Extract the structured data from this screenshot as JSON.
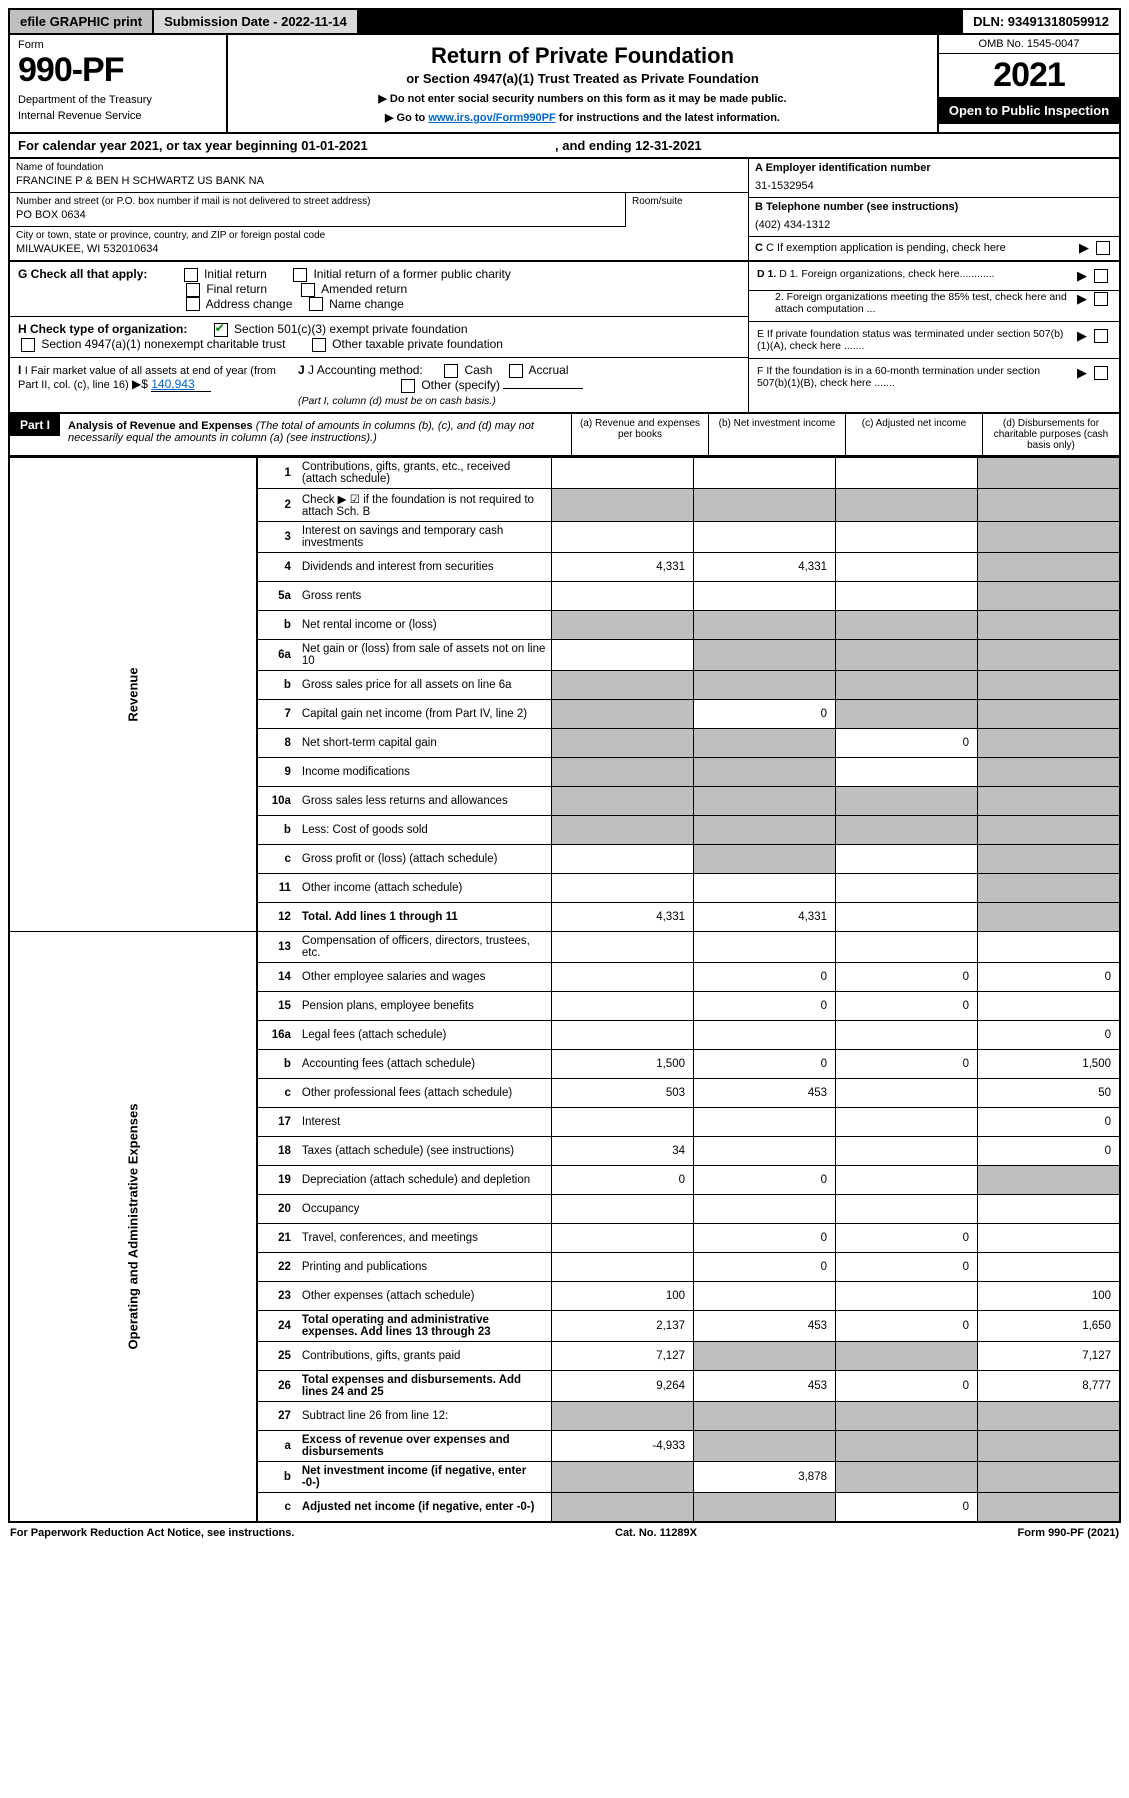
{
  "topbar": {
    "efile": "efile GRAPHIC print",
    "submission": "Submission Date - 2022-11-14",
    "dln": "DLN: 93491318059912"
  },
  "header": {
    "form_label": "Form",
    "form_number": "990-PF",
    "dept1": "Department of the Treasury",
    "dept2": "Internal Revenue Service",
    "title": "Return of Private Foundation",
    "subtitle": "or Section 4947(a)(1) Trust Treated as Private Foundation",
    "instr1": "▶ Do not enter social security numbers on this form as it may be made public.",
    "instr2_pre": "▶ Go to ",
    "instr2_link": "www.irs.gov/Form990PF",
    "instr2_post": " for instructions and the latest information.",
    "omb": "OMB No. 1545-0047",
    "year": "2021",
    "open_public": "Open to Public Inspection"
  },
  "calyear": {
    "text_pre": "For calendar year 2021, or tax year beginning ",
    "begin": "01-01-2021",
    "text_mid": " , and ending ",
    "end": "12-31-2021"
  },
  "info": {
    "name_label": "Name of foundation",
    "name": "FRANCINE P & BEN H SCHWARTZ US BANK NA",
    "addr_label": "Number and street (or P.O. box number if mail is not delivered to street address)",
    "addr": "PO BOX 0634",
    "room_label": "Room/suite",
    "city_label": "City or town, state or province, country, and ZIP or foreign postal code",
    "city": "MILWAUKEE, WI  532010634",
    "ein_label": "A Employer identification number",
    "ein": "31-1532954",
    "phone_label": "B Telephone number (see instructions)",
    "phone": "(402) 434-1312",
    "c_label": "C If exemption application is pending, check here"
  },
  "checks": {
    "g_label": "G Check all that apply:",
    "g_opts": [
      "Initial return",
      "Initial return of a former public charity",
      "Final return",
      "Amended return",
      "Address change",
      "Name change"
    ],
    "h_label": "H Check type of organization:",
    "h_opt1": "Section 501(c)(3) exempt private foundation",
    "h_opt2": "Section 4947(a)(1) nonexempt charitable trust",
    "h_opt3": "Other taxable private foundation",
    "i_label": "I Fair market value of all assets at end of year (from Part II, col. (c), line 16)",
    "i_val": "140,943",
    "j_label": "J Accounting method:",
    "j_cash": "Cash",
    "j_accrual": "Accrual",
    "j_other": "Other (specify)",
    "j_note": "(Part I, column (d) must be on cash basis.)",
    "d1": "D 1. Foreign organizations, check here............",
    "d2": "2. Foreign organizations meeting the 85% test, check here and attach computation ...",
    "e": "E  If private foundation status was terminated under section 507(b)(1)(A), check here .......",
    "f": "F  If the foundation is in a 60-month termination under section 507(b)(1)(B), check here ......."
  },
  "part1": {
    "label": "Part I",
    "title": "Analysis of Revenue and Expenses",
    "note": " (The total of amounts in columns (b), (c), and (d) may not necessarily equal the amounts in column (a) (see instructions).)",
    "cols": {
      "a": "(a) Revenue and expenses per books",
      "b": "(b) Net investment income",
      "c": "(c) Adjusted net income",
      "d": "(d) Disbursements for charitable purposes (cash basis only)"
    }
  },
  "side_labels": {
    "revenue": "Revenue",
    "expenses": "Operating and Administrative Expenses"
  },
  "lines": [
    {
      "n": "1",
      "d": "Contributions, gifts, grants, etc., received (attach schedule)",
      "a": "",
      "b": "",
      "c": "",
      "cd": "grey",
      "dd": "grey"
    },
    {
      "n": "2",
      "d": "Check ▶ ☑ if the foundation is not required to attach Sch. B",
      "a": "",
      "b": "",
      "c": "",
      "cd": "grey",
      "dd": "grey",
      "b_grey": true,
      "a_grey": true,
      "c_grey": true
    },
    {
      "n": "3",
      "d": "Interest on savings and temporary cash investments",
      "a": "",
      "b": "",
      "c": "",
      "dd": "grey"
    },
    {
      "n": "4",
      "d": "Dividends and interest from securities",
      "a": "4,331",
      "b": "4,331",
      "c": "",
      "dd": "grey"
    },
    {
      "n": "5a",
      "d": "Gross rents",
      "a": "",
      "b": "",
      "c": "",
      "dd": "grey"
    },
    {
      "n": "b",
      "d": "Net rental income or (loss)",
      "a": "",
      "b": "",
      "c": "",
      "a_grey": true,
      "b_grey": true,
      "c_grey": true,
      "dd": "grey"
    },
    {
      "n": "6a",
      "d": "Net gain or (loss) from sale of assets not on line 10",
      "a": "",
      "b": "",
      "c": "",
      "b_grey": true,
      "c_grey": true,
      "dd": "grey"
    },
    {
      "n": "b",
      "d": "Gross sales price for all assets on line 6a",
      "a": "",
      "b": "",
      "c": "",
      "a_grey": true,
      "b_grey": true,
      "c_grey": true,
      "dd": "grey"
    },
    {
      "n": "7",
      "d": "Capital gain net income (from Part IV, line 2)",
      "a": "",
      "b": "0",
      "c": "",
      "a_grey": true,
      "c_grey": true,
      "dd": "grey"
    },
    {
      "n": "8",
      "d": "Net short-term capital gain",
      "a": "",
      "b": "",
      "c": "0",
      "a_grey": true,
      "b_grey": true,
      "dd": "grey"
    },
    {
      "n": "9",
      "d": "Income modifications",
      "a": "",
      "b": "",
      "c": "",
      "a_grey": true,
      "b_grey": true,
      "dd": "grey"
    },
    {
      "n": "10a",
      "d": "Gross sales less returns and allowances",
      "a": "",
      "b": "",
      "c": "",
      "a_grey": true,
      "b_grey": true,
      "c_grey": true,
      "dd": "grey"
    },
    {
      "n": "b",
      "d": "Less: Cost of goods sold",
      "a": "",
      "b": "",
      "c": "",
      "a_grey": true,
      "b_grey": true,
      "c_grey": true,
      "dd": "grey"
    },
    {
      "n": "c",
      "d": "Gross profit or (loss) (attach schedule)",
      "a": "",
      "b": "",
      "c": "",
      "b_grey": true,
      "dd": "grey"
    },
    {
      "n": "11",
      "d": "Other income (attach schedule)",
      "a": "",
      "b": "",
      "c": "",
      "dd": "grey"
    },
    {
      "n": "12",
      "d": "Total. Add lines 1 through 11",
      "a": "4,331",
      "b": "4,331",
      "c": "",
      "dd": "grey",
      "bold": true
    }
  ],
  "exp_lines": [
    {
      "n": "13",
      "d": "Compensation of officers, directors, trustees, etc.",
      "a": "",
      "b": "",
      "c": "",
      "dv": ""
    },
    {
      "n": "14",
      "d": "Other employee salaries and wages",
      "a": "",
      "b": "0",
      "c": "0",
      "dv": "0"
    },
    {
      "n": "15",
      "d": "Pension plans, employee benefits",
      "a": "",
      "b": "0",
      "c": "0",
      "dv": ""
    },
    {
      "n": "16a",
      "d": "Legal fees (attach schedule)",
      "a": "",
      "b": "",
      "c": "",
      "dv": "0"
    },
    {
      "n": "b",
      "d": "Accounting fees (attach schedule)",
      "a": "1,500",
      "b": "0",
      "c": "0",
      "dv": "1,500"
    },
    {
      "n": "c",
      "d": "Other professional fees (attach schedule)",
      "a": "503",
      "b": "453",
      "c": "",
      "dv": "50"
    },
    {
      "n": "17",
      "d": "Interest",
      "a": "",
      "b": "",
      "c": "",
      "dv": "0"
    },
    {
      "n": "18",
      "d": "Taxes (attach schedule) (see instructions)",
      "a": "34",
      "b": "",
      "c": "",
      "dv": "0"
    },
    {
      "n": "19",
      "d": "Depreciation (attach schedule) and depletion",
      "a": "0",
      "b": "0",
      "c": "",
      "dv": "",
      "d_grey": true
    },
    {
      "n": "20",
      "d": "Occupancy",
      "a": "",
      "b": "",
      "c": "",
      "dv": ""
    },
    {
      "n": "21",
      "d": "Travel, conferences, and meetings",
      "a": "",
      "b": "0",
      "c": "0",
      "dv": ""
    },
    {
      "n": "22",
      "d": "Printing and publications",
      "a": "",
      "b": "0",
      "c": "0",
      "dv": ""
    },
    {
      "n": "23",
      "d": "Other expenses (attach schedule)",
      "a": "100",
      "b": "",
      "c": "",
      "dv": "100"
    },
    {
      "n": "24",
      "d": "Total operating and administrative expenses. Add lines 13 through 23",
      "a": "2,137",
      "b": "453",
      "c": "0",
      "dv": "1,650",
      "bold": true
    },
    {
      "n": "25",
      "d": "Contributions, gifts, grants paid",
      "a": "7,127",
      "b": "",
      "c": "",
      "dv": "7,127",
      "b_grey": true,
      "c_grey": true
    },
    {
      "n": "26",
      "d": "Total expenses and disbursements. Add lines 24 and 25",
      "a": "9,264",
      "b": "453",
      "c": "0",
      "dv": "8,777",
      "bold": true
    },
    {
      "n": "27",
      "d": "Subtract line 26 from line 12:",
      "a": "",
      "b": "",
      "c": "",
      "dv": "",
      "a_grey": true,
      "b_grey": true,
      "c_grey": true,
      "d_grey": true
    },
    {
      "n": "a",
      "d": "Excess of revenue over expenses and disbursements",
      "a": "-4,933",
      "b": "",
      "c": "",
      "dv": "",
      "b_grey": true,
      "c_grey": true,
      "d_grey": true,
      "bold": true
    },
    {
      "n": "b",
      "d": "Net investment income (if negative, enter -0-)",
      "a": "",
      "b": "3,878",
      "c": "",
      "dv": "",
      "a_grey": true,
      "c_grey": true,
      "d_grey": true,
      "bold": true
    },
    {
      "n": "c",
      "d": "Adjusted net income (if negative, enter -0-)",
      "a": "",
      "b": "",
      "c": "0",
      "dv": "",
      "a_grey": true,
      "b_grey": true,
      "d_grey": true,
      "bold": true
    }
  ],
  "footer": {
    "left": "For Paperwork Reduction Act Notice, see instructions.",
    "mid": "Cat. No. 11289X",
    "right": "Form 990-PF (2021)"
  },
  "colors": {
    "grey": "#bfbfbf",
    "link": "#0066cc",
    "check": "#008000"
  }
}
